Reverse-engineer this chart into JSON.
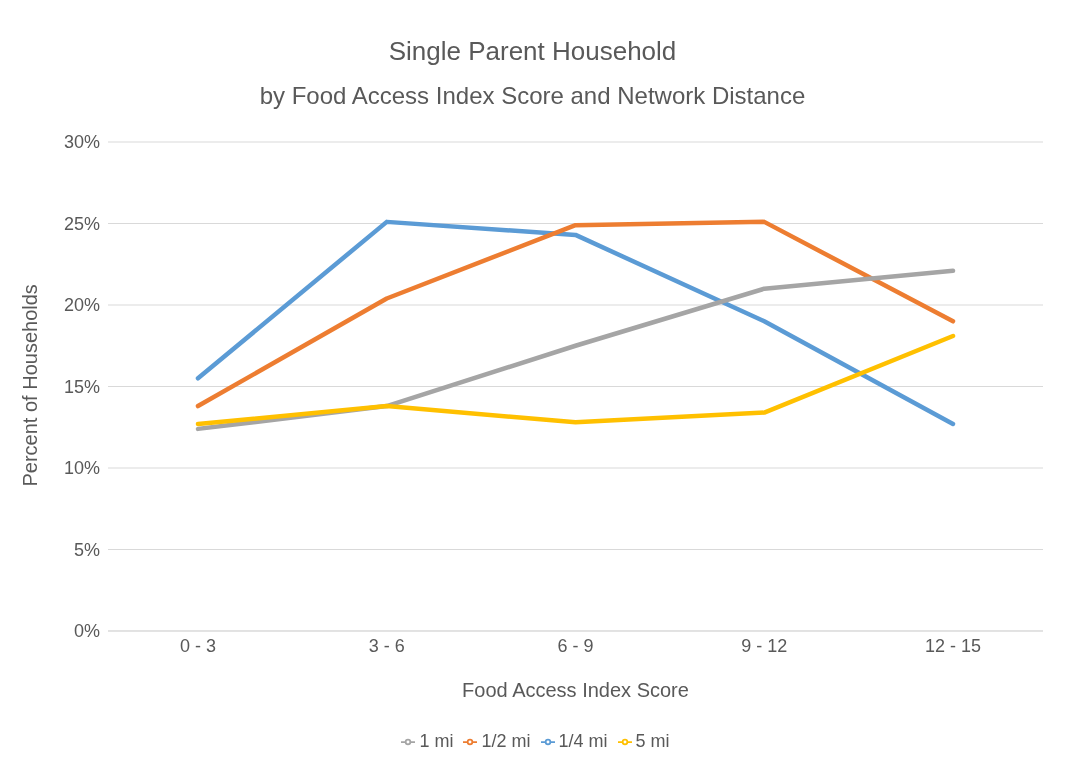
{
  "chart_data": {
    "type": "line",
    "title": "Single Parent Household",
    "subtitle": "by Food Access Index Score and Network Distance",
    "xlabel": "Food Access Index Score",
    "ylabel": "Percent of Households",
    "categories": [
      "0 - 3",
      "3 - 6",
      "6 - 9",
      "9 - 12",
      "12 - 15"
    ],
    "series": [
      {
        "name": "1/4 mi",
        "color": "#5b9bd5",
        "values": [
          15.5,
          25.1,
          24.3,
          19.0,
          12.7
        ]
      },
      {
        "name": "1/2 mi",
        "color": "#ed7d31",
        "values": [
          13.8,
          20.4,
          24.9,
          25.1,
          19.0
        ]
      },
      {
        "name": "1 mi",
        "color": "#a5a5a5",
        "values": [
          12.4,
          13.8,
          17.5,
          21.0,
          22.1
        ]
      },
      {
        "name": "5 mi",
        "color": "#ffc000",
        "values": [
          12.7,
          13.8,
          12.8,
          13.4,
          18.1
        ]
      }
    ],
    "ylim": [
      0,
      30
    ],
    "yticks": [
      {
        "value": 0,
        "label": "0%"
      },
      {
        "value": 5,
        "label": "5%"
      },
      {
        "value": 10,
        "label": "10%"
      },
      {
        "value": 15,
        "label": "15%"
      },
      {
        "value": 20,
        "label": "20%"
      },
      {
        "value": 25,
        "label": "25%"
      },
      {
        "value": 30,
        "label": "30%"
      }
    ],
    "grid": "y",
    "legend": "bottom",
    "marker": "none",
    "line_style": "solid"
  }
}
